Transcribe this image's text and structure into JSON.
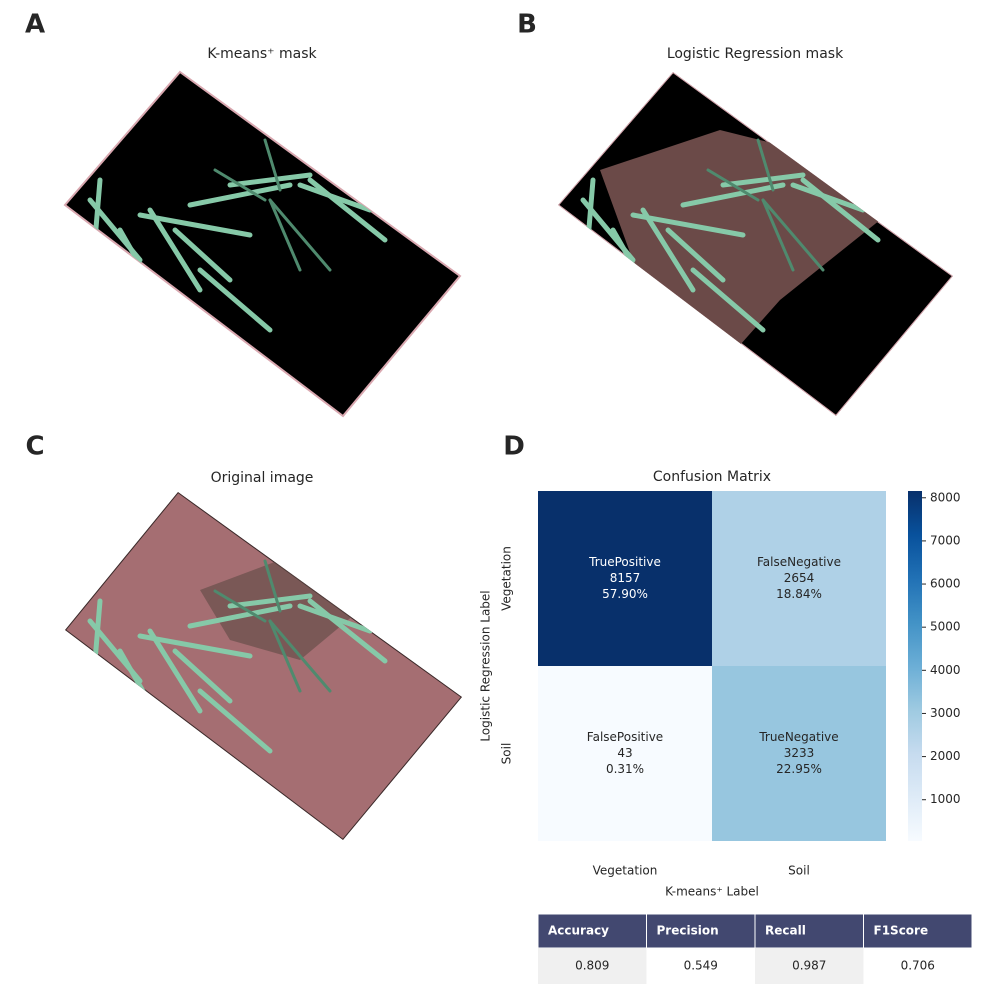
{
  "panels": [
    {
      "letter": "A",
      "title": "K-means⁺ mask"
    },
    {
      "letter": "B",
      "title": "Logistic Regression mask"
    },
    {
      "letter": "C",
      "title": "Original image"
    },
    {
      "letter": "D"
    }
  ],
  "chart_data": {
    "type": "heatmap",
    "title": "Confusion Matrix",
    "x_label": "K-means⁺ Label",
    "y_label": "Logistic Regression Label",
    "x_categories": [
      "Vegetation",
      "Soil"
    ],
    "y_categories": [
      "Vegetation",
      "Soil"
    ],
    "cell_names": [
      [
        "TruePositive",
        "FalseNegative"
      ],
      [
        "FalsePositive",
        "TrueNegative"
      ]
    ],
    "values": [
      [
        8157,
        2654
      ],
      [
        43,
        3233
      ]
    ],
    "percent_labels": [
      [
        "57.90%",
        "18.84%"
      ],
      [
        "0.31%",
        "22.95%"
      ]
    ],
    "clim": [
      43,
      8157
    ],
    "cticks": [
      1000,
      2000,
      3000,
      4000,
      5000,
      6000,
      7000,
      8000
    ],
    "colormap": [
      "#f7fbff",
      "#deebf7",
      "#c6dbef",
      "#9ecae1",
      "#6baed6",
      "#4292c6",
      "#2171b5",
      "#08519c",
      "#08306b"
    ]
  },
  "table": {
    "header": [
      "Accuracy",
      "Precision",
      "Recall",
      "F1Score"
    ],
    "rows": [
      [
        0.809,
        0.549,
        0.987,
        0.706
      ]
    ]
  }
}
